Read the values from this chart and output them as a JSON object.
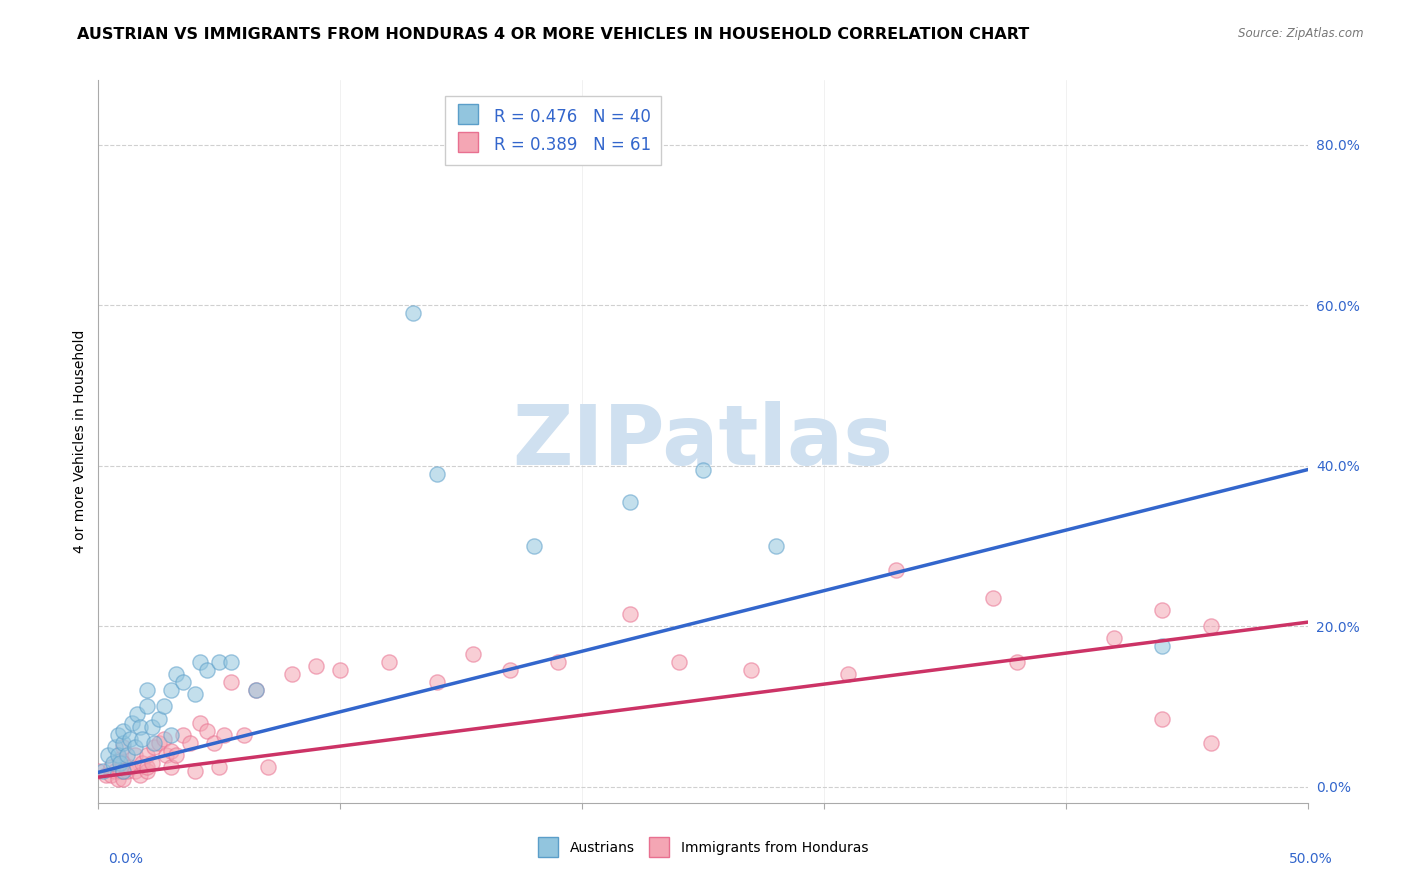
{
  "title": "AUSTRIAN VS IMMIGRANTS FROM HONDURAS 4 OR MORE VEHICLES IN HOUSEHOLD CORRELATION CHART",
  "source": "Source: ZipAtlas.com",
  "ylabel": "4 or more Vehicles in Household",
  "ytick_labels": [
    "0.0%",
    "20.0%",
    "40.0%",
    "60.0%",
    "80.0%"
  ],
  "ytick_values": [
    0.0,
    0.2,
    0.4,
    0.6,
    0.8
  ],
  "xmin": 0.0,
  "xmax": 0.5,
  "ymin": -0.02,
  "ymax": 0.88,
  "legend_blue_r": "0.476",
  "legend_blue_n": "40",
  "legend_pink_r": "0.389",
  "legend_pink_n": "61",
  "blue_color": "#92c5de",
  "pink_color": "#f4a6b4",
  "blue_edge_color": "#5b9ec9",
  "pink_edge_color": "#e87090",
  "blue_line_color": "#3366cc",
  "pink_line_color": "#cc3366",
  "watermark_color": "#cfe0f0",
  "blue_scatter_x": [
    0.002,
    0.004,
    0.006,
    0.007,
    0.008,
    0.008,
    0.009,
    0.01,
    0.01,
    0.01,
    0.012,
    0.013,
    0.014,
    0.015,
    0.016,
    0.017,
    0.018,
    0.02,
    0.02,
    0.022,
    0.023,
    0.025,
    0.027,
    0.03,
    0.03,
    0.032,
    0.035,
    0.04,
    0.042,
    0.045,
    0.05,
    0.055,
    0.065,
    0.13,
    0.14,
    0.18,
    0.22,
    0.25,
    0.28,
    0.44
  ],
  "blue_scatter_y": [
    0.02,
    0.04,
    0.03,
    0.05,
    0.04,
    0.065,
    0.03,
    0.055,
    0.07,
    0.02,
    0.04,
    0.06,
    0.08,
    0.05,
    0.09,
    0.075,
    0.06,
    0.1,
    0.12,
    0.075,
    0.055,
    0.085,
    0.1,
    0.065,
    0.12,
    0.14,
    0.13,
    0.115,
    0.155,
    0.145,
    0.155,
    0.155,
    0.12,
    0.59,
    0.39,
    0.3,
    0.355,
    0.395,
    0.3,
    0.175
  ],
  "pink_scatter_x": [
    0.0,
    0.003,
    0.005,
    0.005,
    0.007,
    0.008,
    0.009,
    0.009,
    0.01,
    0.01,
    0.01,
    0.01,
    0.012,
    0.013,
    0.015,
    0.015,
    0.017,
    0.018,
    0.02,
    0.02,
    0.02,
    0.022,
    0.023,
    0.025,
    0.027,
    0.028,
    0.03,
    0.03,
    0.032,
    0.035,
    0.038,
    0.04,
    0.042,
    0.045,
    0.048,
    0.05,
    0.052,
    0.055,
    0.06,
    0.065,
    0.07,
    0.08,
    0.09,
    0.1,
    0.12,
    0.14,
    0.155,
    0.17,
    0.19,
    0.22,
    0.24,
    0.27,
    0.31,
    0.33,
    0.37,
    0.38,
    0.42,
    0.44,
    0.44,
    0.46,
    0.46
  ],
  "pink_scatter_y": [
    0.02,
    0.015,
    0.015,
    0.025,
    0.02,
    0.01,
    0.02,
    0.035,
    0.01,
    0.02,
    0.03,
    0.05,
    0.02,
    0.025,
    0.02,
    0.04,
    0.015,
    0.03,
    0.02,
    0.025,
    0.04,
    0.03,
    0.05,
    0.055,
    0.06,
    0.04,
    0.025,
    0.045,
    0.04,
    0.065,
    0.055,
    0.02,
    0.08,
    0.07,
    0.055,
    0.025,
    0.065,
    0.13,
    0.065,
    0.12,
    0.025,
    0.14,
    0.15,
    0.145,
    0.155,
    0.13,
    0.165,
    0.145,
    0.155,
    0.215,
    0.155,
    0.145,
    0.14,
    0.27,
    0.235,
    0.155,
    0.185,
    0.085,
    0.22,
    0.055,
    0.2
  ],
  "blue_line_y_start": 0.018,
  "blue_line_y_end": 0.395,
  "pink_line_y_start": 0.012,
  "pink_line_y_end": 0.205,
  "background_color": "#ffffff",
  "grid_color": "#d0d0d0",
  "title_fontsize": 11.5,
  "axis_label_fontsize": 10,
  "tick_fontsize": 10,
  "legend_fontsize": 12,
  "scatter_size": 120
}
